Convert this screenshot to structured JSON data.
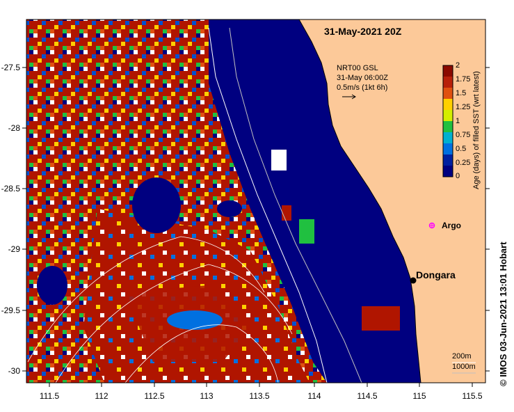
{
  "map": {
    "title": "31-May-2021 20Z",
    "x_ticks": [
      "111.5",
      "112",
      "112.5",
      "113",
      "113.5",
      "114",
      "114.5",
      "115",
      "115.5"
    ],
    "y_ticks": [
      "-27.5",
      "-28",
      "-28.5",
      "-29",
      "-29.5",
      "-30"
    ],
    "current_legend": {
      "line1": "NRT00 GSL",
      "line2": "31-May 06:00Z",
      "line3": "0.5m/s (1kt 6h)"
    },
    "colorbar": {
      "label": "Age (days) of filled SST (wrt latest)",
      "ticks": [
        "2",
        "1.75",
        "1.5",
        "1.25",
        "1",
        "0.75",
        "0.5",
        "0.25",
        "0"
      ],
      "colors": [
        "#8b0a00",
        "#b8200a",
        "#e05010",
        "#ffd000",
        "#d4ee00",
        "#20c040",
        "#00b0d0",
        "#0070e0",
        "#0020a0",
        "#000080"
      ]
    },
    "places": {
      "argo": "Argo",
      "dongara": "Dongara"
    },
    "isobaths": {
      "label_200": "200m",
      "label_1000": "1000m"
    },
    "credit": "© IMOS 03-Jun-2021 13:01 Hobart",
    "colors": {
      "land": "#fcc999",
      "ocean": "#000080",
      "old_sst": "#b01500",
      "argo": "#ff00ff"
    }
  }
}
